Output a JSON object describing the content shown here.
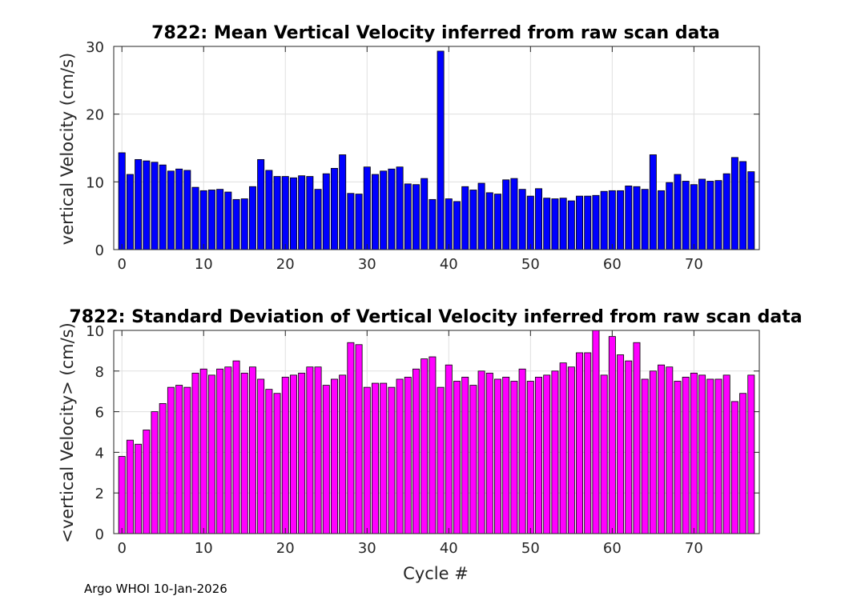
{
  "footer": "Argo WHOI 10-Jan-2026",
  "chart_data": [
    {
      "type": "bar",
      "title": "7822: Mean Vertical Velocity inferred from raw scan data",
      "xlabel": "",
      "ylabel": "vertical Velocity (cm/s)",
      "xlim": [
        -1,
        78
      ],
      "ylim": [
        0,
        30
      ],
      "xticks": [
        0,
        10,
        20,
        30,
        40,
        50,
        60,
        70
      ],
      "yticks": [
        0,
        10,
        20,
        30
      ],
      "grid": true,
      "color": "#0000ff",
      "x": [
        0,
        1,
        2,
        3,
        4,
        5,
        6,
        7,
        8,
        9,
        10,
        11,
        12,
        13,
        14,
        15,
        16,
        17,
        18,
        19,
        20,
        21,
        22,
        23,
        24,
        25,
        26,
        27,
        28,
        29,
        30,
        31,
        32,
        33,
        34,
        35,
        36,
        37,
        38,
        39,
        40,
        41,
        42,
        43,
        44,
        45,
        46,
        47,
        48,
        49,
        50,
        51,
        52,
        53,
        54,
        55,
        56,
        57,
        58,
        59,
        60,
        61,
        62,
        63,
        64,
        65,
        66,
        67,
        68,
        69,
        70,
        71,
        72,
        73,
        74,
        75,
        76,
        77
      ],
      "values": [
        14.3,
        11.1,
        13.3,
        13.1,
        12.9,
        12.5,
        11.6,
        11.9,
        11.7,
        9.2,
        8.7,
        8.8,
        8.9,
        8.5,
        7.4,
        7.5,
        9.3,
        13.3,
        11.7,
        10.8,
        10.8,
        10.6,
        10.9,
        10.8,
        8.9,
        11.2,
        12.0,
        14.0,
        8.3,
        8.2,
        12.2,
        11.1,
        11.6,
        11.9,
        12.2,
        9.7,
        9.6,
        10.5,
        7.4,
        29.3,
        7.5,
        7.1,
        9.3,
        8.8,
        9.8,
        8.4,
        8.2,
        10.3,
        10.5,
        8.9,
        7.9,
        9.0,
        7.6,
        7.5,
        7.6,
        7.2,
        7.9,
        7.9,
        8.0,
        8.6,
        8.7,
        8.7,
        9.4,
        9.3,
        8.9,
        14.0,
        8.7,
        9.9,
        11.1,
        10.1,
        9.6,
        10.4,
        10.1,
        10.2,
        11.2,
        13.6,
        13.0,
        11.5
      ]
    },
    {
      "type": "bar",
      "title": "7822: Standard Deviation of Vertical Velocity inferred from raw scan data",
      "xlabel": "Cycle #",
      "ylabel": "<vertical Velocity> (cm/s)",
      "xlim": [
        -1,
        78
      ],
      "ylim": [
        0,
        10
      ],
      "xticks": [
        0,
        10,
        20,
        30,
        40,
        50,
        60,
        70
      ],
      "yticks": [
        0,
        2,
        4,
        6,
        8,
        10
      ],
      "grid": true,
      "color": "#ff00ff",
      "x": [
        0,
        1,
        2,
        3,
        4,
        5,
        6,
        7,
        8,
        9,
        10,
        11,
        12,
        13,
        14,
        15,
        16,
        17,
        18,
        19,
        20,
        21,
        22,
        23,
        24,
        25,
        26,
        27,
        28,
        29,
        30,
        31,
        32,
        33,
        34,
        35,
        36,
        37,
        38,
        39,
        40,
        41,
        42,
        43,
        44,
        45,
        46,
        47,
        48,
        49,
        50,
        51,
        52,
        53,
        54,
        55,
        56,
        57,
        58,
        59,
        60,
        61,
        62,
        63,
        64,
        65,
        66,
        67,
        68,
        69,
        70,
        71,
        72,
        73,
        74,
        75,
        76,
        77
      ],
      "values": [
        3.8,
        4.6,
        4.4,
        5.1,
        6.0,
        6.4,
        7.2,
        7.3,
        7.2,
        7.9,
        8.1,
        7.8,
        8.1,
        8.2,
        8.5,
        7.9,
        8.2,
        7.6,
        7.1,
        6.9,
        7.7,
        7.8,
        7.9,
        8.2,
        8.2,
        7.3,
        7.6,
        7.8,
        9.4,
        9.3,
        7.2,
        7.4,
        7.4,
        7.2,
        7.6,
        7.7,
        8.1,
        8.6,
        8.7,
        7.2,
        8.3,
        7.5,
        7.7,
        7.3,
        8.0,
        7.9,
        7.6,
        7.7,
        7.5,
        8.1,
        7.5,
        7.7,
        7.8,
        8.0,
        8.4,
        8.2,
        8.9,
        8.9,
        10.0,
        7.8,
        9.7,
        8.8,
        8.5,
        9.4,
        7.6,
        8.0,
        8.3,
        8.2,
        7.5,
        7.7,
        7.9,
        7.8,
        7.6,
        7.6,
        7.8,
        6.5,
        6.9,
        7.8
      ]
    }
  ]
}
